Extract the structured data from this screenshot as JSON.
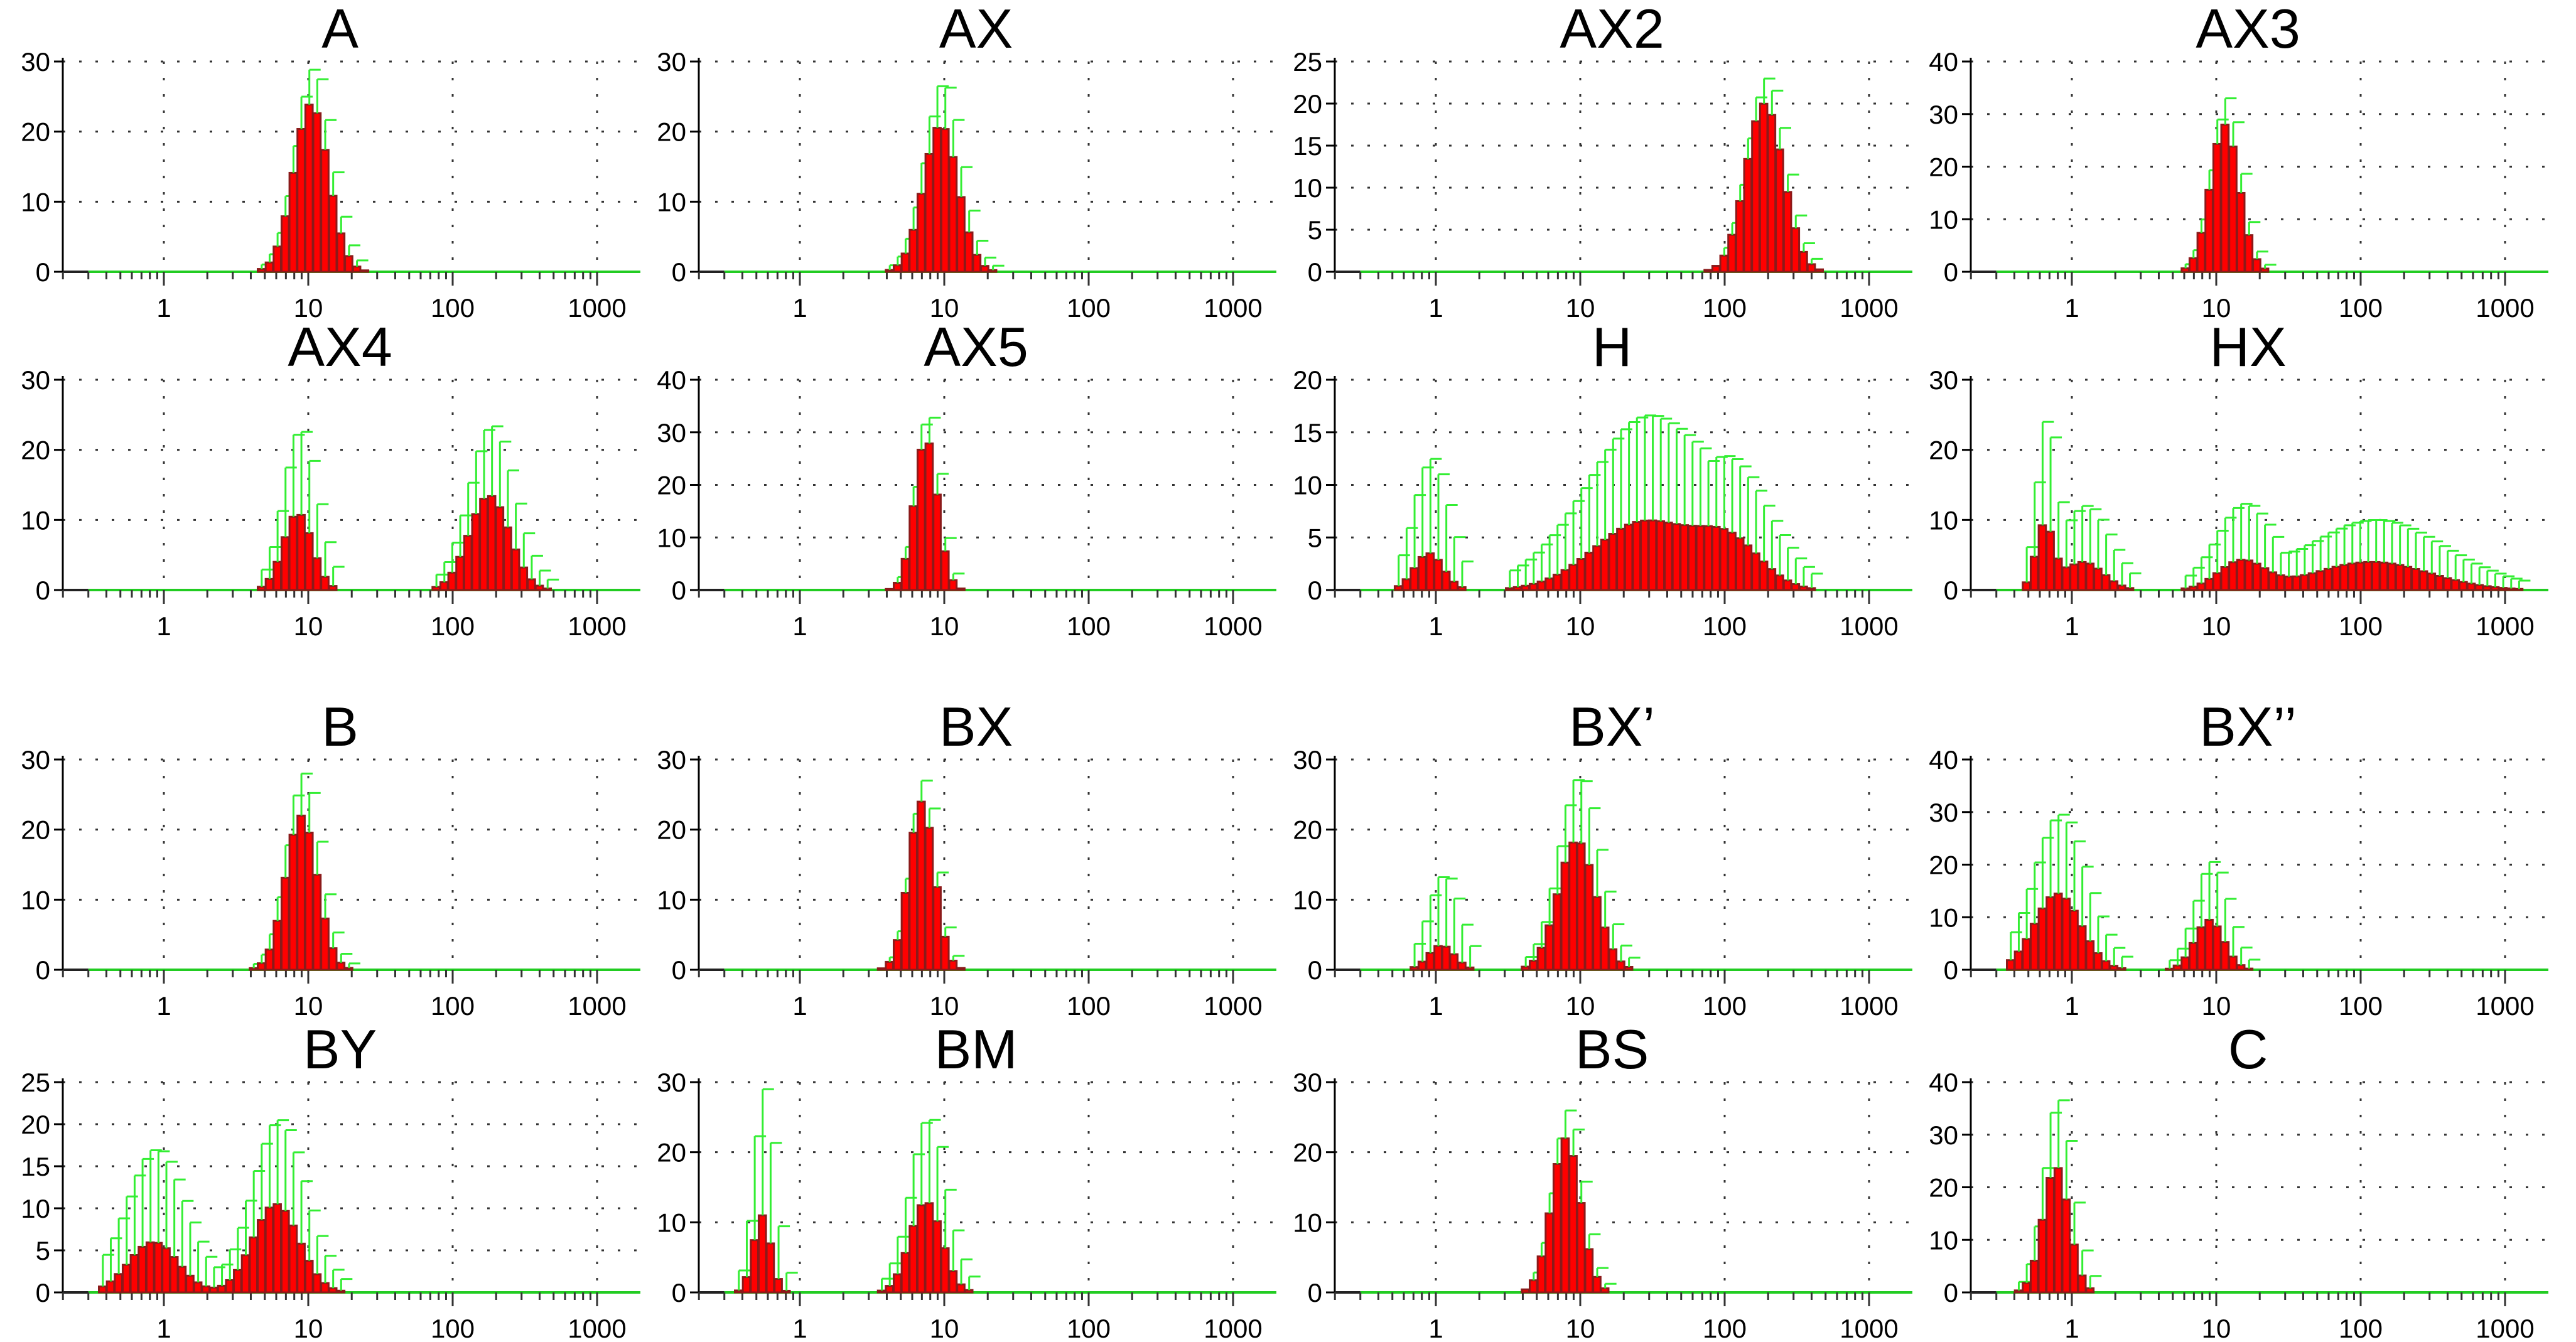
{
  "chart_data": [
    {
      "type": "bar",
      "title": "A",
      "x_scale": "log",
      "xticks": [
        "1",
        "10",
        "100",
        "1000"
      ],
      "ylim": [
        0,
        30
      ],
      "yticks": [
        0,
        10,
        20,
        30
      ],
      "grid": "dotted",
      "peaks": [
        {
          "center": 10.5,
          "height": 24,
          "width": 0.12,
          "err": 5
        }
      ]
    },
    {
      "type": "bar",
      "title": "AX",
      "x_scale": "log",
      "xticks": [
        "1",
        "10",
        "100",
        "1000"
      ],
      "ylim": [
        0,
        30
      ],
      "yticks": [
        0,
        10,
        20,
        30
      ],
      "grid": "dotted",
      "peaks": [
        {
          "center": 9.5,
          "height": 21,
          "width": 0.12,
          "err": 6
        }
      ]
    },
    {
      "type": "bar",
      "title": "AX2",
      "x_scale": "log",
      "xticks": [
        "1",
        "10",
        "100",
        "1000"
      ],
      "ylim": [
        0,
        25
      ],
      "yticks": [
        0,
        5,
        10,
        15,
        20,
        25
      ],
      "grid": "dotted",
      "peaks": [
        {
          "center": 190,
          "height": 20,
          "width": 0.13,
          "err": 3
        }
      ]
    },
    {
      "type": "bar",
      "title": "AX3",
      "x_scale": "log",
      "xticks": [
        "1",
        "10",
        "100",
        "1000"
      ],
      "ylim": [
        0,
        40
      ],
      "yticks": [
        0,
        10,
        20,
        30,
        40
      ],
      "grid": "dotted",
      "peaks": [
        {
          "center": 11.5,
          "height": 28,
          "width": 0.1,
          "err": 5
        }
      ]
    },
    {
      "type": "bar",
      "title": "AX4",
      "x_scale": "log",
      "xticks": [
        "1",
        "10",
        "100",
        "1000"
      ],
      "ylim": [
        0,
        30
      ],
      "yticks": [
        0,
        10,
        20,
        30
      ],
      "grid": "dotted",
      "peaks": [
        {
          "center": 8.5,
          "height": 11,
          "width": 0.1,
          "err": 12
        },
        {
          "center": 180,
          "height": 13.5,
          "width": 0.14,
          "err": 10
        }
      ]
    },
    {
      "type": "bar",
      "title": "AX5",
      "x_scale": "log",
      "xticks": [
        "1",
        "10",
        "100",
        "1000"
      ],
      "ylim": [
        0,
        40
      ],
      "yticks": [
        0,
        10,
        20,
        30,
        40
      ],
      "grid": "dotted",
      "peaks": [
        {
          "center": 7.5,
          "height": 29,
          "width": 0.08,
          "err": 5
        }
      ]
    },
    {
      "type": "bar",
      "title": "H",
      "x_scale": "log",
      "xticks": [
        "1",
        "10",
        "100",
        "1000"
      ],
      "ylim": [
        0,
        20
      ],
      "yticks": [
        0,
        5,
        10,
        15,
        20
      ],
      "grid": "dotted",
      "peaks": [
        {
          "center": 0.9,
          "height": 3.5,
          "width": 0.1,
          "err": 9
        },
        {
          "center": 28,
          "height": 6.5,
          "width": 0.35,
          "err": 10
        },
        {
          "center": 110,
          "height": 4,
          "width": 0.22,
          "err": 7
        }
      ]
    },
    {
      "type": "bar",
      "title": "HX",
      "x_scale": "log",
      "xticks": [
        "1",
        "10",
        "100",
        "1000"
      ],
      "ylim": [
        0,
        30
      ],
      "yticks": [
        0,
        10,
        20,
        30
      ],
      "grid": "dotted",
      "peaks": [
        {
          "center": 0.65,
          "height": 9,
          "width": 0.06,
          "err": 15
        },
        {
          "center": 1.2,
          "height": 4,
          "width": 0.14,
          "err": 8
        },
        {
          "center": 15,
          "height": 4,
          "width": 0.16,
          "err": 8
        },
        {
          "center": 120,
          "height": 4,
          "width": 0.4,
          "err": 6
        }
      ]
    },
    {
      "type": "bar",
      "title": "B",
      "x_scale": "log",
      "xticks": [
        "1",
        "10",
        "100",
        "1000"
      ],
      "ylim": [
        0,
        30
      ],
      "yticks": [
        0,
        10,
        20,
        30
      ],
      "grid": "dotted",
      "peaks": [
        {
          "center": 9,
          "height": 22,
          "width": 0.11,
          "err": 6
        }
      ]
    },
    {
      "type": "bar",
      "title": "BX",
      "x_scale": "log",
      "xticks": [
        "1",
        "10",
        "100",
        "1000"
      ],
      "ylim": [
        0,
        30
      ],
      "yticks": [
        0,
        10,
        20,
        30
      ],
      "grid": "dotted",
      "peaks": [
        {
          "center": 7,
          "height": 24,
          "width": 0.09,
          "err": 3
        }
      ]
    },
    {
      "type": "bar",
      "title": "BX’",
      "x_scale": "log",
      "xticks": [
        "1",
        "10",
        "100",
        "1000"
      ],
      "ylim": [
        0,
        30
      ],
      "yticks": [
        0,
        10,
        20,
        30
      ],
      "grid": "dotted",
      "peaks": [
        {
          "center": 1.1,
          "height": 3.5,
          "width": 0.09,
          "err": 10
        },
        {
          "center": 9.5,
          "height": 18.5,
          "width": 0.13,
          "err": 9
        }
      ]
    },
    {
      "type": "bar",
      "title": "BX’’",
      "x_scale": "log",
      "xticks": [
        "1",
        "10",
        "100",
        "1000"
      ],
      "ylim": [
        0,
        40
      ],
      "yticks": [
        0,
        10,
        20,
        30,
        40
      ],
      "grid": "dotted",
      "peaks": [
        {
          "center": 0.8,
          "height": 14.5,
          "width": 0.16,
          "err": 15
        },
        {
          "center": 9,
          "height": 9.5,
          "width": 0.1,
          "err": 11
        }
      ]
    },
    {
      "type": "bar",
      "title": "BY",
      "x_scale": "log",
      "xticks": [
        "1",
        "10",
        "100",
        "1000"
      ],
      "ylim": [
        0,
        25
      ],
      "yticks": [
        0,
        5,
        10,
        15,
        20,
        25
      ],
      "grid": "dotted",
      "peaks": [
        {
          "center": 0.85,
          "height": 6,
          "width": 0.17,
          "err": 11
        },
        {
          "center": 6,
          "height": 10.5,
          "width": 0.16,
          "err": 10
        }
      ]
    },
    {
      "type": "bar",
      "title": "BM",
      "x_scale": "log",
      "xticks": [
        "1",
        "10",
        "100",
        "1000"
      ],
      "ylim": [
        0,
        30
      ],
      "yticks": [
        0,
        10,
        20,
        30
      ],
      "grid": "dotted",
      "peaks": [
        {
          "center": 0.55,
          "height": 11,
          "width": 0.06,
          "err": 18
        },
        {
          "center": 7.5,
          "height": 13,
          "width": 0.11,
          "err": 12
        }
      ]
    },
    {
      "type": "bar",
      "title": "BS",
      "x_scale": "log",
      "xticks": [
        "1",
        "10",
        "100",
        "1000"
      ],
      "ylim": [
        0,
        30
      ],
      "yticks": [
        0,
        10,
        20,
        30
      ],
      "grid": "dotted",
      "peaks": [
        {
          "center": 8,
          "height": 22,
          "width": 0.1,
          "err": 4
        }
      ]
    },
    {
      "type": "bar",
      "title": "C",
      "x_scale": "log",
      "xticks": [
        "1",
        "10",
        "100",
        "1000"
      ],
      "ylim": [
        0,
        40
      ],
      "yticks": [
        0,
        10,
        20,
        30,
        40
      ],
      "grid": "dotted",
      "peaks": [
        {
          "center": 0.78,
          "height": 24,
          "width": 0.09,
          "err": 13
        }
      ]
    }
  ],
  "colors": {
    "bar_fill": "#ff0000",
    "bar_dark": "#8b1a1a",
    "error_bar": "#33ee33",
    "grid": "#333333",
    "axis": "#000000",
    "baseline": "#22cc22"
  }
}
